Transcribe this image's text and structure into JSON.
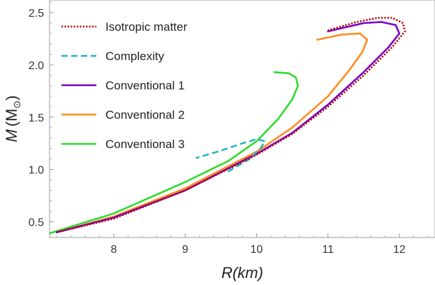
{
  "chart_data": {
    "type": "line",
    "title": "",
    "xlabel": "R(km)",
    "ylabel_main": "M",
    "ylabel_unit": "M",
    "ylabel_unit_symbol": "⊙",
    "xlim": [
      7.1,
      12.5
    ],
    "ylim": [
      0.35,
      2.62
    ],
    "xticks": [
      8,
      9,
      10,
      11,
      12
    ],
    "yticks": [
      0.5,
      1.0,
      1.5,
      2.0,
      2.5
    ],
    "ytick_labels": [
      "0.5",
      "1.0",
      "1.5",
      "2.0",
      "2.5"
    ],
    "grid": false,
    "legend_position": "top-left",
    "series": [
      {
        "name": "Isotropic matter",
        "color": "#b30000",
        "dash": "dotted",
        "points": [
          [
            7.2,
            0.4
          ],
          [
            8.0,
            0.53
          ],
          [
            9.0,
            0.8
          ],
          [
            10.0,
            1.14
          ],
          [
            10.5,
            1.34
          ],
          [
            11.0,
            1.6
          ],
          [
            11.5,
            1.9
          ],
          [
            11.9,
            2.17
          ],
          [
            12.08,
            2.32
          ],
          [
            12.05,
            2.4
          ],
          [
            11.9,
            2.45
          ],
          [
            11.7,
            2.45
          ],
          [
            11.4,
            2.41
          ],
          [
            11.0,
            2.33
          ]
        ]
      },
      {
        "name": "Complexity",
        "color": "#1fb5c8",
        "dash": "dashed",
        "points": [
          [
            9.6,
            0.98
          ],
          [
            9.9,
            1.1
          ],
          [
            10.05,
            1.2
          ],
          [
            10.12,
            1.27
          ],
          [
            10.0,
            1.29
          ],
          [
            9.8,
            1.25
          ],
          [
            9.5,
            1.18
          ],
          [
            9.15,
            1.11
          ]
        ]
      },
      {
        "name": "Conventional 1",
        "color": "#7a00c8",
        "dash": "solid",
        "points": [
          [
            7.2,
            0.4
          ],
          [
            8.0,
            0.54
          ],
          [
            9.0,
            0.8
          ],
          [
            10.0,
            1.15
          ],
          [
            10.5,
            1.35
          ],
          [
            11.0,
            1.62
          ],
          [
            11.5,
            1.93
          ],
          [
            11.85,
            2.17
          ],
          [
            12.0,
            2.3
          ],
          [
            11.95,
            2.38
          ],
          [
            11.75,
            2.41
          ],
          [
            11.5,
            2.4
          ],
          [
            11.0,
            2.32
          ]
        ]
      },
      {
        "name": "Conventional 2",
        "color": "#ff8c1a",
        "dash": "solid",
        "points": [
          [
            7.2,
            0.4
          ],
          [
            8.0,
            0.55
          ],
          [
            9.0,
            0.82
          ],
          [
            10.0,
            1.17
          ],
          [
            10.5,
            1.4
          ],
          [
            11.0,
            1.7
          ],
          [
            11.3,
            1.95
          ],
          [
            11.48,
            2.12
          ],
          [
            11.55,
            2.24
          ],
          [
            11.45,
            2.3
          ],
          [
            11.2,
            2.29
          ],
          [
            10.85,
            2.24
          ]
        ]
      },
      {
        "name": "Conventional 3",
        "color": "#2ddc2d",
        "dash": "solid",
        "points": [
          [
            7.1,
            0.39
          ],
          [
            8.0,
            0.58
          ],
          [
            9.0,
            0.88
          ],
          [
            9.6,
            1.08
          ],
          [
            10.0,
            1.27
          ],
          [
            10.3,
            1.48
          ],
          [
            10.5,
            1.67
          ],
          [
            10.58,
            1.8
          ],
          [
            10.55,
            1.88
          ],
          [
            10.45,
            1.92
          ],
          [
            10.25,
            1.93
          ]
        ]
      }
    ]
  }
}
